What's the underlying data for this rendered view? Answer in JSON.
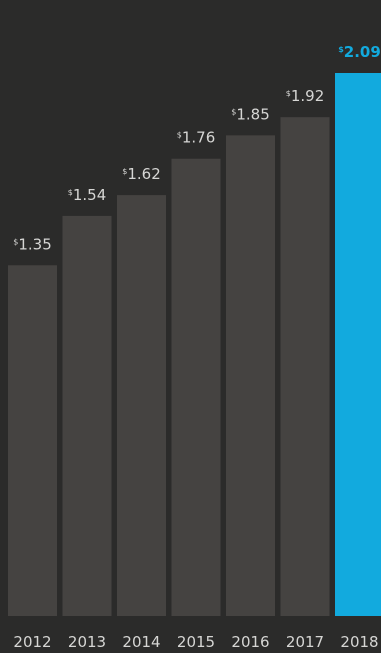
{
  "chart_data": {
    "type": "bar",
    "categories": [
      "2012",
      "2013",
      "2014",
      "2015",
      "2016",
      "2017",
      "2018"
    ],
    "values": [
      1.35,
      1.54,
      1.62,
      1.76,
      1.85,
      1.92,
      2.09
    ],
    "value_labels": [
      "1.35",
      "1.54",
      "1.62",
      "1.76",
      "1.85",
      "1.92",
      "2.09"
    ],
    "currency_symbol": "$",
    "highlight_category": "2018",
    "title": "",
    "xlabel": "",
    "ylabel": "",
    "ylim": [
      0,
      2.09
    ],
    "grid": false,
    "legend": "none",
    "colors": {
      "background": "#2b2b2a",
      "bar": "#454341",
      "highlight": "#12aade",
      "text": "#d6d6d4"
    }
  }
}
